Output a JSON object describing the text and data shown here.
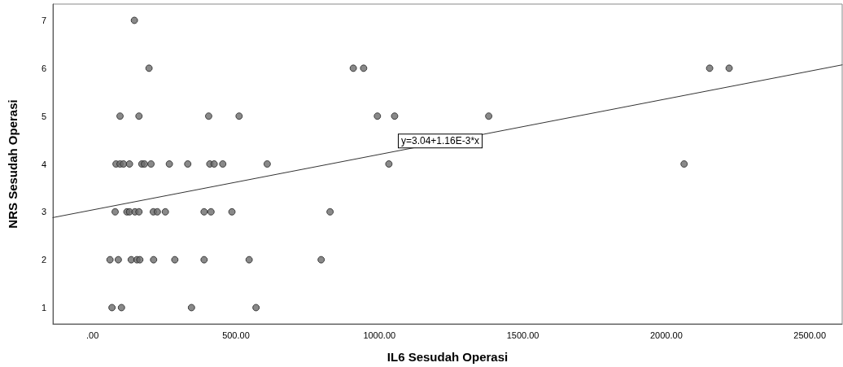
{
  "chart_data": {
    "type": "scatter",
    "xlabel": "IL6 Sesudah Operasi",
    "ylabel": "NRS Sesudah Operasi",
    "xlim": [
      -138,
      2613
    ],
    "ylim": [
      0.66,
      7.34
    ],
    "xticks": [
      {
        "value": 0,
        "label": ".00"
      },
      {
        "value": 500,
        "label": "500.00"
      },
      {
        "value": 1000,
        "label": "1000.00"
      },
      {
        "value": 1500,
        "label": "1500.00"
      },
      {
        "value": 2000,
        "label": "2000.00"
      },
      {
        "value": 2500,
        "label": "2500.00"
      }
    ],
    "yticks": [
      1,
      2,
      3,
      4,
      5,
      6,
      7
    ],
    "grid": false,
    "marker": "circle",
    "annotations": [
      {
        "text": "y=3.04+1.16E-3*x",
        "x": 1212,
        "y": 4.48
      }
    ],
    "series": [
      {
        "color": "#6b6b6b",
        "x": [
          146,
          197,
          909,
          945,
          2151,
          2219,
          96,
          162,
          405,
          511,
          993,
          1053,
          1381,
          82,
          96,
          108,
          129,
          172,
          181,
          204,
          268,
          332,
          409,
          424,
          454,
          609,
          1033,
          2062,
          79,
          120,
          129,
          148,
          162,
          212,
          226,
          254,
          389,
          413,
          486,
          828,
          61,
          90,
          135,
          155,
          165,
          213,
          287,
          389,
          546,
          797,
          68,
          101,
          345,
          570
        ],
        "values": [
          7,
          6,
          6,
          6,
          6,
          6,
          5,
          5,
          5,
          5,
          5,
          5,
          5,
          4,
          4,
          4,
          4,
          4,
          4,
          4,
          4,
          4,
          4,
          4,
          4,
          4,
          4,
          4,
          3,
          3,
          3,
          3,
          3,
          3,
          3,
          3,
          3,
          3,
          3,
          3,
          2,
          2,
          2,
          2,
          2,
          2,
          2,
          2,
          2,
          2,
          1,
          1,
          1,
          1
        ]
      },
      {
        "type": "line",
        "color": "#333333",
        "x": [
          -138,
          2613
        ],
        "values": [
          2.88,
          6.07
        ],
        "marker": "none"
      }
    ]
  }
}
